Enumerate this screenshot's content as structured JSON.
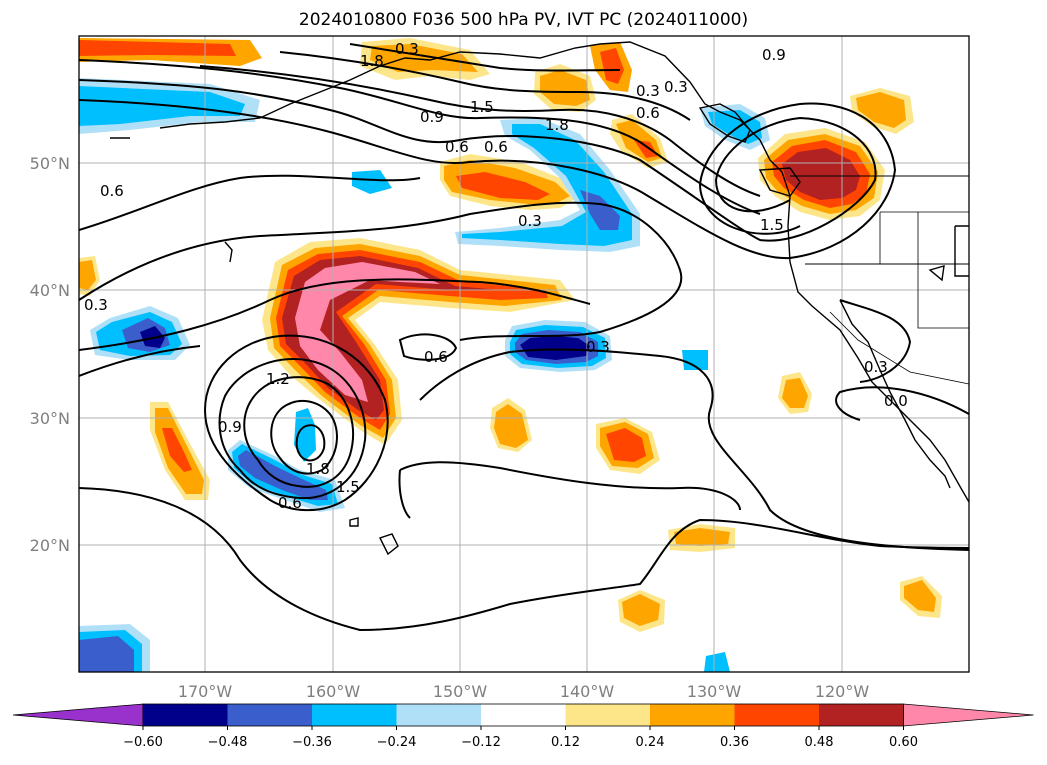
{
  "title": "2024010800 F036 500 hPa PV, IVT PC (2024011000)",
  "map": {
    "region": "North Pacific and western North America",
    "lon_labels": [
      "170°W",
      "160°W",
      "150°W",
      "140°W",
      "130°W",
      "120°W"
    ],
    "lat_labels": [
      "50°N",
      "40°N",
      "30°N",
      "20°N"
    ],
    "gridlines": true,
    "pv_contour_labels": [
      "1.8",
      "0.3",
      "0.9",
      "0.6",
      "1.5",
      "0.9",
      "0.3",
      "0.6",
      "1.8",
      "0.3",
      "0.6",
      "1.5",
      "0.6",
      "0.3",
      "0.3",
      "0.6",
      "0.3",
      "1.2",
      "0.9",
      "1.8",
      "1.5",
      "0.6",
      "0.3",
      "0.0"
    ]
  },
  "colorbar": {
    "orientation": "horizontal",
    "extend": "both",
    "tick_labels": [
      "−0.60",
      "−0.48",
      "−0.36",
      "−0.24",
      "−0.12",
      "0.12",
      "0.24",
      "0.36",
      "0.48",
      "0.60"
    ],
    "colors": [
      "#9932cc",
      "#00008b",
      "#3a5fcd",
      "#00bfff",
      "#b0e0f8",
      "#ffffff",
      "#fde68a",
      "#ffa500",
      "#ff4500",
      "#b22222",
      "#ff88aa"
    ]
  }
}
